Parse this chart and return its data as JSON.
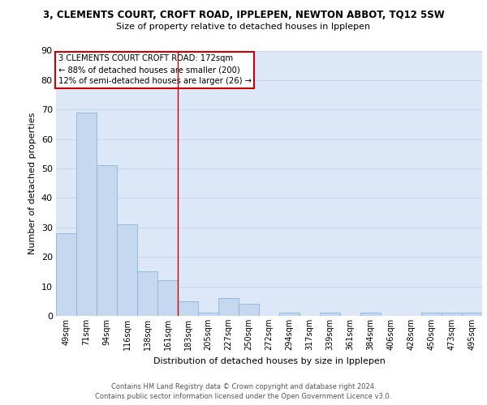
{
  "title1": "3, CLEMENTS COURT, CROFT ROAD, IPPLEPEN, NEWTON ABBOT, TQ12 5SW",
  "title2": "Size of property relative to detached houses in Ipplepen",
  "xlabel": "Distribution of detached houses by size in Ipplepen",
  "ylabel": "Number of detached properties",
  "categories": [
    "49sqm",
    "71sqm",
    "94sqm",
    "116sqm",
    "138sqm",
    "161sqm",
    "183sqm",
    "205sqm",
    "227sqm",
    "250sqm",
    "272sqm",
    "294sqm",
    "317sqm",
    "339sqm",
    "361sqm",
    "384sqm",
    "406sqm",
    "428sqm",
    "450sqm",
    "473sqm",
    "495sqm"
  ],
  "values": [
    28,
    69,
    51,
    31,
    15,
    12,
    5,
    1,
    6,
    4,
    0,
    1,
    0,
    1,
    0,
    1,
    0,
    0,
    1,
    1,
    1
  ],
  "bar_color": "#c5d8f0",
  "bar_edge_color": "#8ab4d8",
  "annotation_text_line1": "3 CLEMENTS COURT CROFT ROAD: 172sqm",
  "annotation_text_line2": "← 88% of detached houses are smaller (200)",
  "annotation_text_line3": "12% of semi-detached houses are larger (26) →",
  "annotation_box_color": "#ffffff",
  "annotation_box_edge": "#cc0000",
  "red_line_x": 6,
  "ylim": [
    0,
    90
  ],
  "yticks": [
    0,
    10,
    20,
    30,
    40,
    50,
    60,
    70,
    80,
    90
  ],
  "footer1": "Contains HM Land Registry data © Crown copyright and database right 2024.",
  "footer2": "Contains public sector information licensed under the Open Government Licence v3.0.",
  "grid_color": "#c8d4e8",
  "bg_color": "#dce8f8",
  "fig_bg": "#ffffff"
}
